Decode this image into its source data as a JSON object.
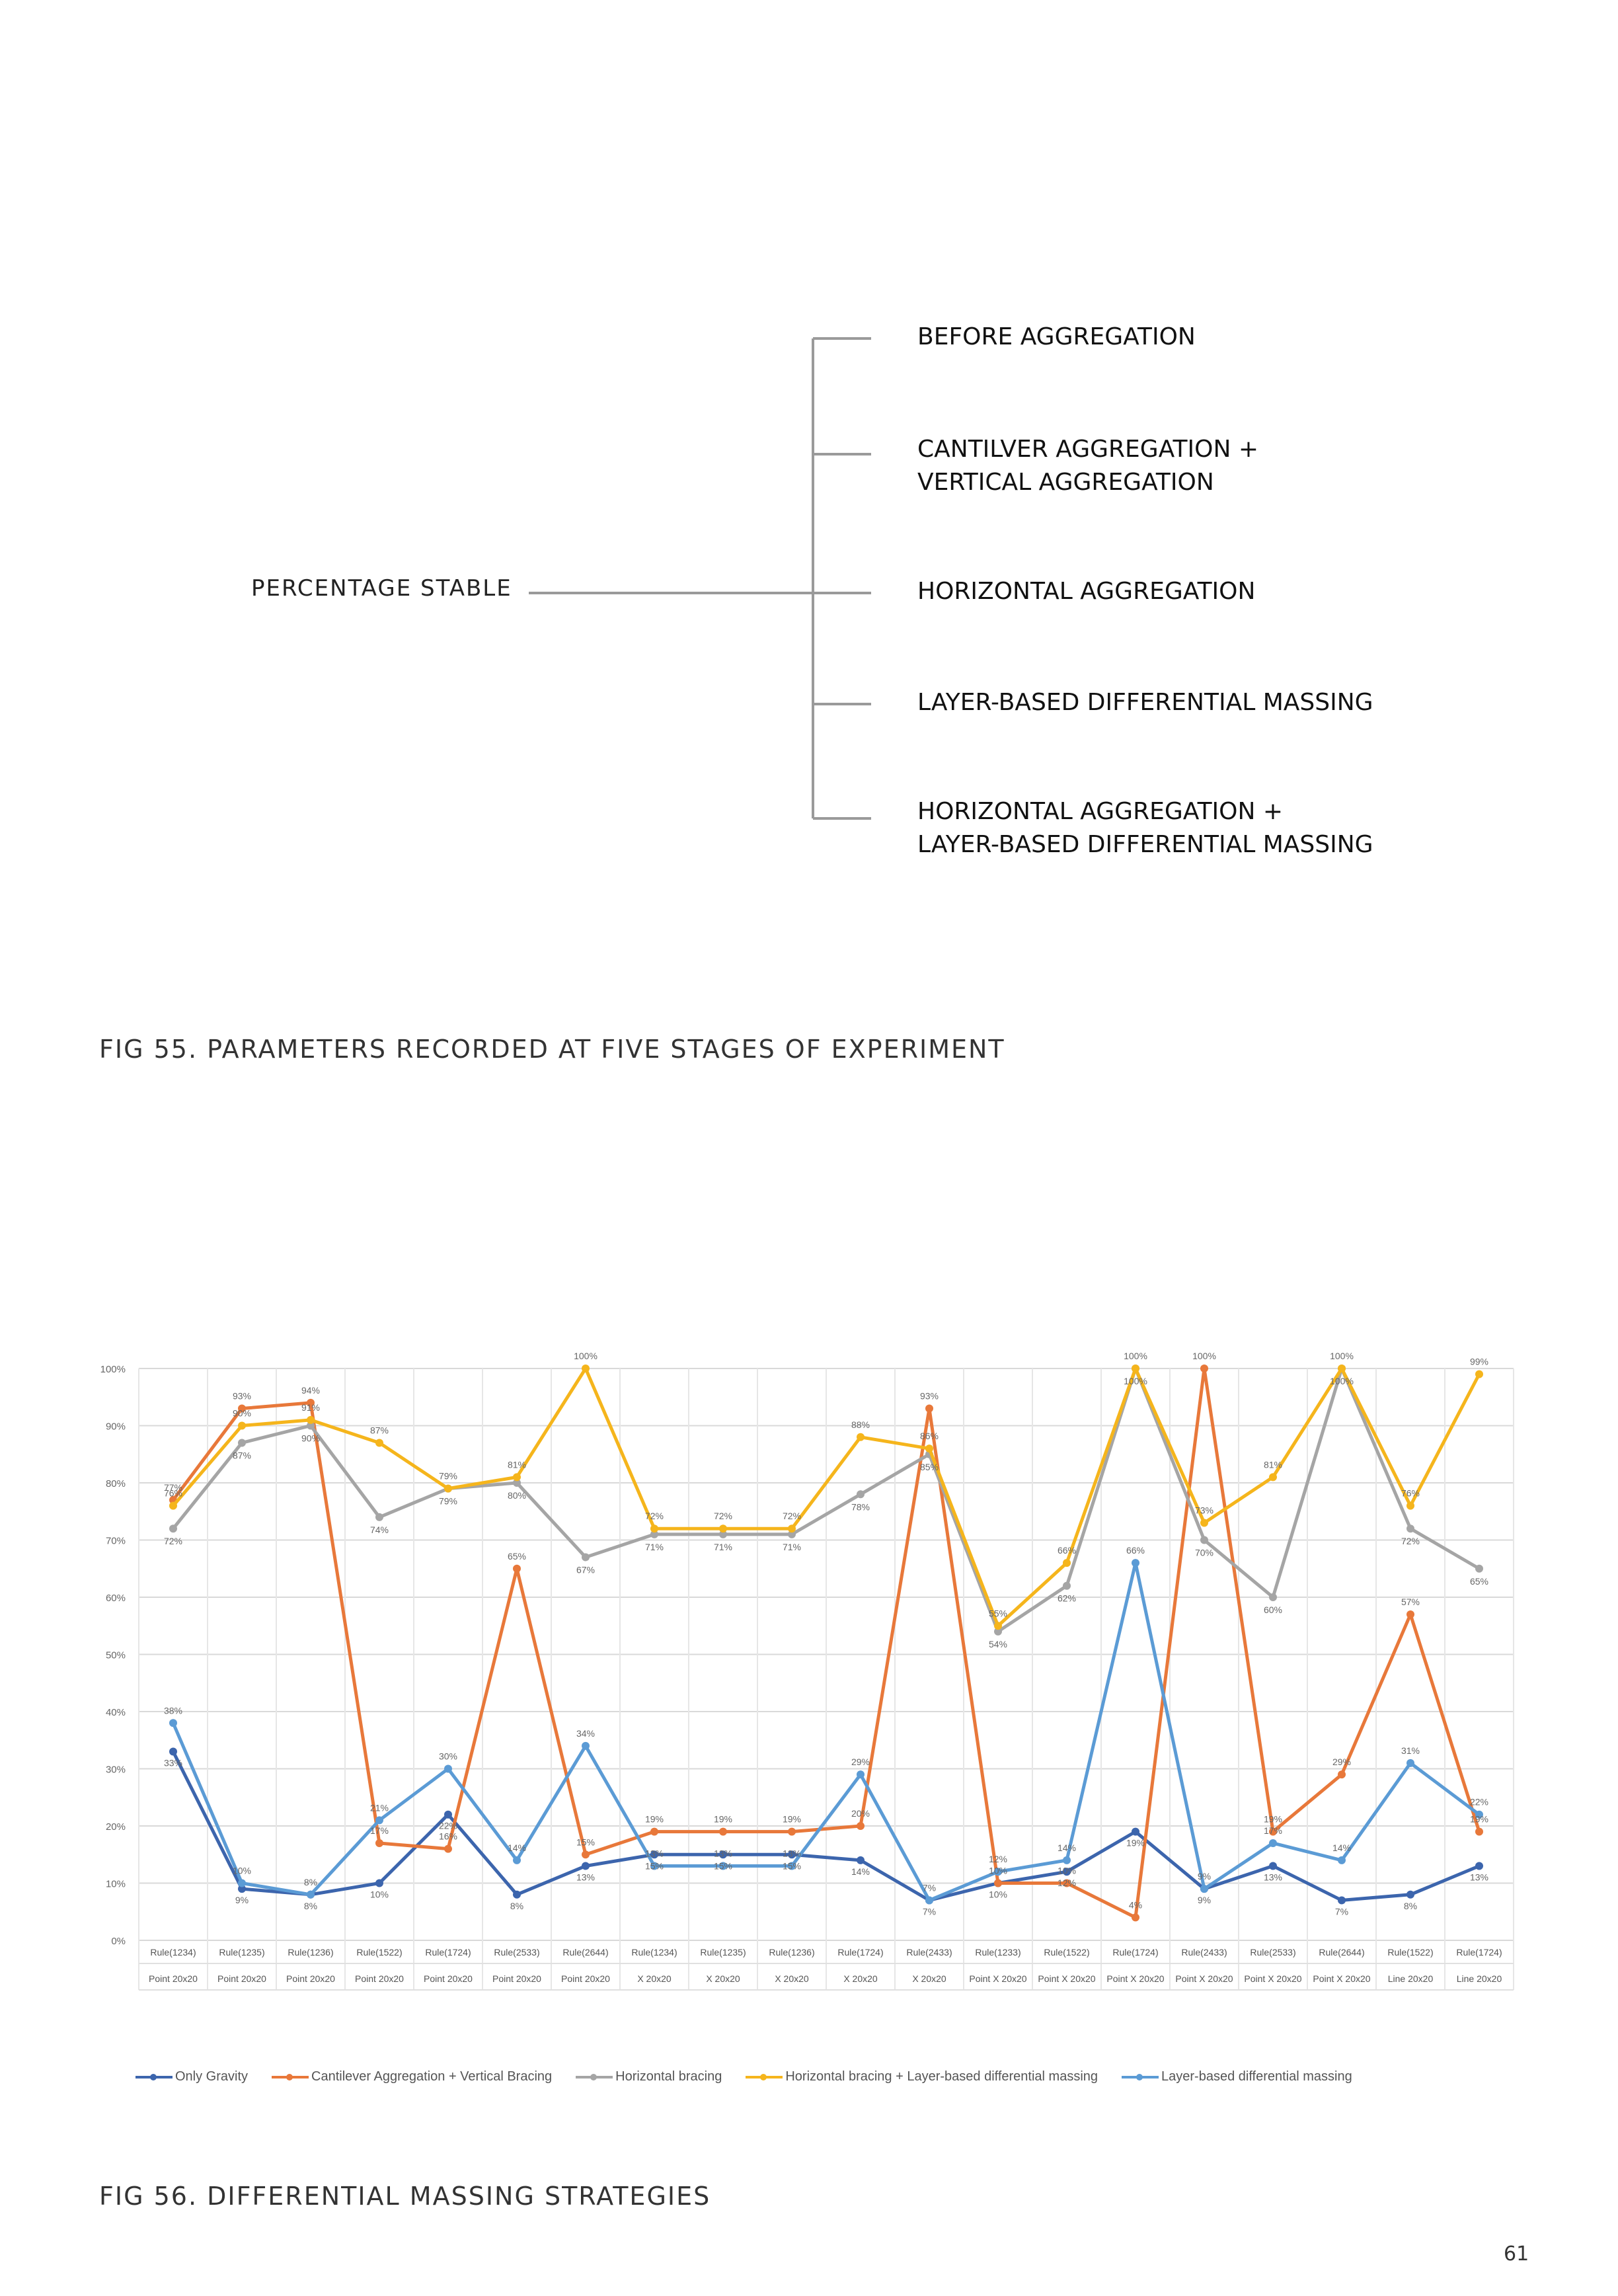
{
  "tree": {
    "root": "PERCENTAGE STABLE",
    "items": [
      [
        "BEFORE AGGREGATION"
      ],
      [
        "CANTILVER AGGREGATION +",
        "VERTICAL AGGREGATION"
      ],
      [
        "HORIZONTAL AGGREGATION"
      ],
      [
        "LAYER-BASED DIFFERENTIAL MASSING"
      ],
      [
        "HORIZONTAL AGGREGATION +",
        "LAYER-BASED DIFFERENTIAL MASSING"
      ]
    ]
  },
  "captions": {
    "fig55": "FIG 55. PARAMETERS RECORDED AT FIVE STAGES OF EXPERIMENT",
    "fig56": "FIG 56. DIFFERENTIAL MASSING STRATEGIES"
  },
  "page_number": "61",
  "chart_data": {
    "type": "line",
    "title": "",
    "xlabel": "",
    "ylabel": "",
    "ylim": [
      0,
      100
    ],
    "y_ticks": [
      "0%",
      "10%",
      "20%",
      "30%",
      "40%",
      "50%",
      "60%",
      "70%",
      "80%",
      "90%",
      "100%"
    ],
    "grid": true,
    "legend_position": "bottom",
    "categories": [
      [
        "Rule(1234)",
        "Point 20x20"
      ],
      [
        "Rule(1235)",
        "Point 20x20"
      ],
      [
        "Rule(1236)",
        "Point 20x20"
      ],
      [
        "Rule(1522)",
        "Point 20x20"
      ],
      [
        "Rule(1724)",
        "Point 20x20"
      ],
      [
        "Rule(2533)",
        "Point 20x20"
      ],
      [
        "Rule(2644)",
        "Point 20x20"
      ],
      [
        "Rule(1234)",
        "X 20x20"
      ],
      [
        "Rule(1235)",
        "X 20x20"
      ],
      [
        "Rule(1236)",
        "X 20x20"
      ],
      [
        "Rule(1724)",
        "X 20x20"
      ],
      [
        "Rule(2433)",
        "X 20x20"
      ],
      [
        "Rule(1233)",
        "Point X 20x20"
      ],
      [
        "Rule(1522)",
        "Point X 20x20"
      ],
      [
        "Rule(1724)",
        "Point X 20x20"
      ],
      [
        "Rule(2433)",
        "Point X 20x20"
      ],
      [
        "Rule(2533)",
        "Point X 20x20"
      ],
      [
        "Rule(2644)",
        "Point X 20x20"
      ],
      [
        "Rule(1522)",
        "Line 20x20"
      ],
      [
        "Rule(1724)",
        "Line 20x20"
      ]
    ],
    "series": [
      {
        "name": "Only Gravity",
        "color": "#3c65ad",
        "values": [
          33,
          9,
          8,
          10,
          22,
          8,
          13,
          15,
          15,
          15,
          14,
          7,
          10,
          12,
          19,
          9,
          13,
          7,
          8,
          13
        ],
        "labels": [
          "33%",
          "9%",
          "8%",
          "10%",
          "22%",
          "8%",
          "13%",
          "15%",
          "15%",
          "15%",
          "14%",
          "7%",
          "10%",
          "12%",
          "19%",
          "9%",
          "13%",
          "7%",
          "8%",
          "13%"
        ]
      },
      {
        "name": "Cantilever Aggregation + Vertical Bracing",
        "color": "#e8783a",
        "values": [
          77,
          93,
          94,
          17,
          16,
          65,
          15,
          19,
          19,
          19,
          20,
          93,
          10,
          10,
          4,
          100,
          19,
          29,
          57,
          19
        ],
        "labels": [
          "77%",
          "93%",
          "94%",
          "17%",
          "16%",
          "65%",
          "15%",
          "19%",
          "19%",
          "19%",
          "20%",
          "93%",
          "10%",
          "10%",
          "4%",
          "100%",
          "19%",
          "29%",
          "57%",
          "19%"
        ]
      },
      {
        "name": "Horizontal bracing",
        "color": "#a5a5a5",
        "values": [
          72,
          87,
          90,
          74,
          79,
          80,
          67,
          71,
          71,
          71,
          78,
          85,
          54,
          62,
          100,
          70,
          60,
          100,
          72,
          65
        ],
        "labels": [
          "72%",
          "87%",
          "90%",
          "74%",
          "79%",
          "80%",
          "67%",
          "71%",
          "71%",
          "71%",
          "78%",
          "85%",
          "54%",
          "62%",
          "100%",
          "70%",
          "60%",
          "100%",
          "72%",
          "65%"
        ]
      },
      {
        "name": "Horizontal bracing + Layer-based differential massing",
        "color": "#f5b51c",
        "values": [
          76,
          90,
          91,
          87,
          79,
          81,
          100,
          72,
          72,
          72,
          88,
          86,
          55,
          66,
          100,
          73,
          81,
          100,
          76,
          99
        ],
        "labels": [
          "76%",
          "90%",
          "91%",
          "87%",
          "79%",
          "81%",
          "100%",
          "72%",
          "72%",
          "72%",
          "88%",
          "86%",
          "55%",
          "66%",
          "100%",
          "73%",
          "81%",
          "100%",
          "76%",
          "99%"
        ]
      },
      {
        "name": "Layer-based differential massing",
        "color": "#5b9bd5",
        "values": [
          38,
          10,
          8,
          21,
          30,
          14,
          34,
          13,
          13,
          13,
          29,
          7,
          12,
          14,
          66,
          9,
          17,
          14,
          31,
          22
        ],
        "labels": [
          "38%",
          "10%",
          "8%",
          "21%",
          "30%",
          "14%",
          "34%",
          "13%",
          "13%",
          "13%",
          "29%",
          "7%",
          "12%",
          "14%",
          "66%",
          "9%",
          "17%",
          "14%",
          "31%",
          "22%"
        ]
      }
    ]
  }
}
